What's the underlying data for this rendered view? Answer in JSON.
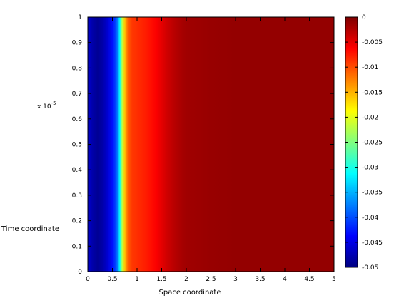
{
  "chart_data": {
    "type": "heatmap",
    "title": "",
    "xlabel": "Space coordinate",
    "ylabel": "Time coordinate",
    "x_ticks": [
      0,
      0.5,
      1,
      1.5,
      2,
      2.5,
      3,
      3.5,
      4,
      4.5,
      5
    ],
    "x_tick_labels": [
      "0",
      "0.5",
      "1",
      "1.5",
      "2",
      "2.5",
      "3",
      "3.5",
      "4",
      "4.5",
      "5"
    ],
    "xlim": [
      0,
      5
    ],
    "y_ticks": [
      0,
      0.1,
      0.2,
      0.3,
      0.4,
      0.5,
      0.6,
      0.7,
      0.8,
      0.9,
      1
    ],
    "y_tick_labels": [
      "0",
      "0.1",
      "0.2",
      "0.3",
      "0.4",
      "0.5",
      "0.6",
      "0.7",
      "0.8",
      "0.9",
      "1"
    ],
    "ylim": [
      0,
      1
    ],
    "y_multiplier": "x 10",
    "y_multiplier_exponent": "-5",
    "colorbar": {
      "colormap": "jet",
      "clim": [
        -0.05,
        0
      ],
      "ticks": [
        0,
        -0.005,
        -0.01,
        -0.015,
        -0.02,
        -0.025,
        -0.03,
        -0.035,
        -0.04,
        -0.045,
        -0.05
      ],
      "tick_labels": [
        "0",
        "-0.005",
        "-0.01",
        "-0.015",
        "-0.02",
        "-0.025",
        "-0.03",
        "-0.035",
        "-0.04",
        "-0.045",
        "-0.05"
      ]
    },
    "profile_along_x": {
      "x": [
        0,
        0.1,
        0.2,
        0.3,
        0.4,
        0.5,
        0.55,
        0.6,
        0.65,
        0.7,
        0.75,
        0.8,
        0.85,
        0.9,
        1.0,
        1.1,
        1.2,
        1.3,
        1.4,
        1.5,
        1.6,
        1.7,
        1.8,
        1.9,
        2.0,
        2.5,
        3.0,
        3.5,
        4.0,
        4.5,
        5.0
      ],
      "values": [
        -0.046,
        -0.048,
        -0.049,
        -0.048,
        -0.046,
        -0.043,
        -0.041,
        -0.038,
        -0.031,
        -0.022,
        -0.016,
        -0.012,
        -0.01,
        -0.009,
        -0.0085,
        -0.008,
        -0.0075,
        -0.0068,
        -0.006,
        -0.005,
        -0.004,
        -0.0032,
        -0.0025,
        -0.002,
        -0.0016,
        -0.0012,
        -0.001,
        -0.001,
        -0.001,
        -0.001,
        -0.001
      ]
    },
    "grid": false,
    "colors": {
      "background": "#ffffff",
      "axis": "#000000"
    }
  }
}
